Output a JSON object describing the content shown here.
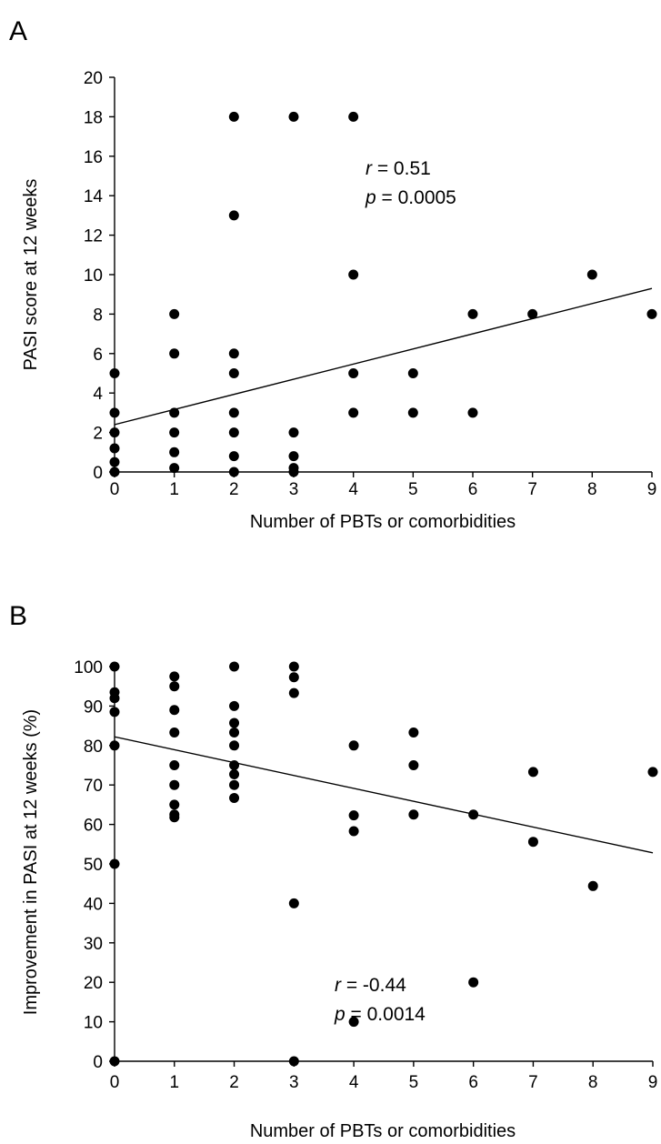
{
  "chart_data": [
    {
      "type": "scatter",
      "panel_label": "A",
      "xlabel": "Number of PBTs or comorbidities",
      "ylabel": "PASI score at 12 weeks",
      "xlim": [
        0,
        9
      ],
      "ylim": [
        0,
        20
      ],
      "x_ticks": [
        0,
        1,
        2,
        3,
        4,
        5,
        6,
        7,
        8,
        9
      ],
      "y_ticks": [
        0,
        2,
        4,
        6,
        8,
        10,
        12,
        14,
        16,
        18,
        20
      ],
      "grid": false,
      "points": [
        {
          "x": 0,
          "y": 5
        },
        {
          "x": 0,
          "y": 3
        },
        {
          "x": 0,
          "y": 2
        },
        {
          "x": 0,
          "y": 1.2
        },
        {
          "x": 0,
          "y": 0.5
        },
        {
          "x": 0,
          "y": 0
        },
        {
          "x": 1,
          "y": 8
        },
        {
          "x": 1,
          "y": 6
        },
        {
          "x": 1,
          "y": 3
        },
        {
          "x": 1,
          "y": 2
        },
        {
          "x": 1,
          "y": 1
        },
        {
          "x": 1,
          "y": 0.2
        },
        {
          "x": 2,
          "y": 18
        },
        {
          "x": 2,
          "y": 13
        },
        {
          "x": 2,
          "y": 6
        },
        {
          "x": 2,
          "y": 5
        },
        {
          "x": 2,
          "y": 3
        },
        {
          "x": 2,
          "y": 2
        },
        {
          "x": 2,
          "y": 0.8
        },
        {
          "x": 2,
          "y": 0
        },
        {
          "x": 3,
          "y": 18
        },
        {
          "x": 3,
          "y": 2
        },
        {
          "x": 3,
          "y": 0.8
        },
        {
          "x": 3,
          "y": 0.2
        },
        {
          "x": 3,
          "y": 0
        },
        {
          "x": 4,
          "y": 18
        },
        {
          "x": 4,
          "y": 10
        },
        {
          "x": 4,
          "y": 5
        },
        {
          "x": 4,
          "y": 3
        },
        {
          "x": 5,
          "y": 5
        },
        {
          "x": 5,
          "y": 3
        },
        {
          "x": 6,
          "y": 8
        },
        {
          "x": 6,
          "y": 3
        },
        {
          "x": 7,
          "y": 8
        },
        {
          "x": 8,
          "y": 10
        },
        {
          "x": 9,
          "y": 8
        }
      ],
      "trendline": {
        "x": [
          0,
          9
        ],
        "y": [
          2.4,
          9.3
        ]
      },
      "annotations": {
        "r_symbol": "r",
        "r_value": " = 0.51",
        "p_symbol": "p",
        "p_value": " = 0.0005"
      }
    },
    {
      "type": "scatter",
      "panel_label": "B",
      "xlabel": "Number of PBTs or comorbidities",
      "ylabel": "Improvement in PASI at 12 weeks (%)",
      "xlim": [
        0,
        9
      ],
      "ylim": [
        0,
        100
      ],
      "x_ticks": [
        0,
        1,
        2,
        3,
        4,
        5,
        6,
        7,
        8,
        9
      ],
      "y_ticks": [
        0,
        10,
        20,
        30,
        40,
        50,
        60,
        70,
        80,
        90,
        100
      ],
      "grid": false,
      "points": [
        {
          "x": 0,
          "y": 100
        },
        {
          "x": 0,
          "y": 93.5
        },
        {
          "x": 0,
          "y": 92
        },
        {
          "x": 0,
          "y": 88.5
        },
        {
          "x": 0,
          "y": 80
        },
        {
          "x": 0,
          "y": 50
        },
        {
          "x": 0,
          "y": 0
        },
        {
          "x": 1,
          "y": 97.5
        },
        {
          "x": 1,
          "y": 95
        },
        {
          "x": 1,
          "y": 89
        },
        {
          "x": 1,
          "y": 83.3
        },
        {
          "x": 1,
          "y": 75
        },
        {
          "x": 1,
          "y": 70
        },
        {
          "x": 1,
          "y": 65
        },
        {
          "x": 1,
          "y": 62.5
        },
        {
          "x": 1,
          "y": 61.8
        },
        {
          "x": 2,
          "y": 100
        },
        {
          "x": 2,
          "y": 90
        },
        {
          "x": 2,
          "y": 85.7
        },
        {
          "x": 2,
          "y": 83.3
        },
        {
          "x": 2,
          "y": 80
        },
        {
          "x": 2,
          "y": 75
        },
        {
          "x": 2,
          "y": 72.7
        },
        {
          "x": 2,
          "y": 70
        },
        {
          "x": 2,
          "y": 66.7
        },
        {
          "x": 3,
          "y": 100
        },
        {
          "x": 3,
          "y": 97.3
        },
        {
          "x": 3,
          "y": 93.3
        },
        {
          "x": 3,
          "y": 40
        },
        {
          "x": 3,
          "y": 0
        },
        {
          "x": 4,
          "y": 80
        },
        {
          "x": 4,
          "y": 62.3
        },
        {
          "x": 4,
          "y": 58.3
        },
        {
          "x": 4,
          "y": 10
        },
        {
          "x": 5,
          "y": 83.3
        },
        {
          "x": 5,
          "y": 75
        },
        {
          "x": 5,
          "y": 62.5
        },
        {
          "x": 6,
          "y": 62.5
        },
        {
          "x": 6,
          "y": 20
        },
        {
          "x": 7,
          "y": 73.3
        },
        {
          "x": 7,
          "y": 55.6
        },
        {
          "x": 8,
          "y": 44.4
        },
        {
          "x": 9,
          "y": 73.3
        }
      ],
      "trendline": {
        "x": [
          0,
          9
        ],
        "y": [
          82.2,
          52.8
        ]
      },
      "annotations": {
        "r_symbol": "r",
        "r_value": " = -0.44",
        "p_symbol": "p",
        "p_value": " = 0.0014"
      }
    }
  ]
}
